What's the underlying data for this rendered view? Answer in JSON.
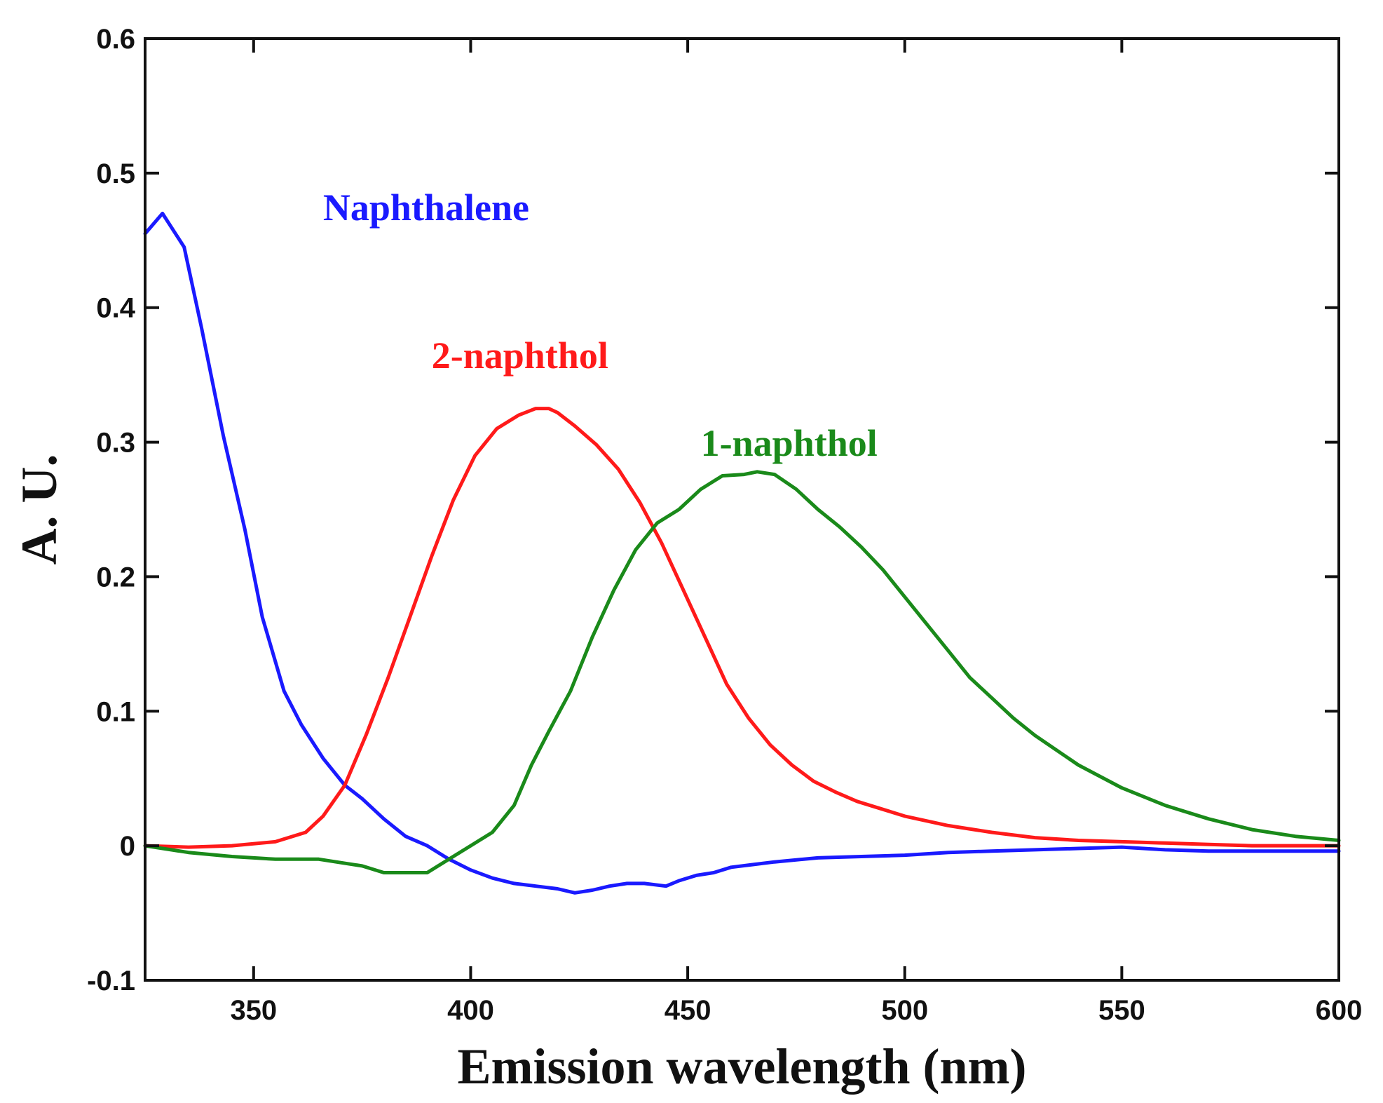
{
  "chart_data": {
    "type": "line",
    "title": "",
    "xlabel": "Emission wavelength (nm)",
    "ylabel": "A. U.",
    "xlim": [
      325,
      600
    ],
    "ylim": [
      -0.1,
      0.6
    ],
    "xticks": [
      350,
      400,
      450,
      500,
      550,
      600
    ],
    "yticks": [
      -0.1,
      0,
      0.1,
      0.2,
      0.3,
      0.4,
      0.5,
      0.6
    ],
    "xtick_labels": [
      "350",
      "400",
      "450",
      "500",
      "550",
      "600"
    ],
    "ytick_labels": [
      "-0.1",
      "0",
      "0.1",
      "0.2",
      "0.3",
      "0.4",
      "0.5",
      "0.6"
    ],
    "grid": false,
    "series": [
      {
        "name": "Naphthalene",
        "color": "#1a1aff",
        "x": [
          325,
          329,
          334,
          338,
          343,
          348,
          352,
          357,
          361,
          366,
          371,
          375,
          380,
          385,
          390,
          395,
          400,
          405,
          410,
          415,
          420,
          424,
          428,
          432,
          436,
          440,
          445,
          448,
          452,
          456,
          460,
          465,
          470,
          480,
          490,
          500,
          510,
          520,
          530,
          540,
          550,
          560,
          570,
          580,
          590,
          600
        ],
        "y": [
          0.455,
          0.47,
          0.445,
          0.385,
          0.305,
          0.235,
          0.17,
          0.115,
          0.09,
          0.065,
          0.045,
          0.035,
          0.02,
          0.007,
          0.0,
          -0.01,
          -0.018,
          -0.024,
          -0.028,
          -0.03,
          -0.032,
          -0.035,
          -0.033,
          -0.03,
          -0.028,
          -0.028,
          -0.03,
          -0.026,
          -0.022,
          -0.02,
          -0.016,
          -0.014,
          -0.012,
          -0.009,
          -0.008,
          -0.007,
          -0.005,
          -0.004,
          -0.003,
          -0.002,
          -0.001,
          -0.003,
          -0.004,
          -0.004,
          -0.004,
          -0.004
        ]
      },
      {
        "name": "2-naphthol",
        "color": "#ff1a1a",
        "x": [
          325,
          335,
          345,
          355,
          362,
          366,
          371,
          376,
          381,
          386,
          391,
          396,
          401,
          406,
          411,
          415,
          418,
          420,
          424,
          429,
          434,
          439,
          444,
          449,
          454,
          459,
          464,
          469,
          474,
          479,
          484,
          489,
          495,
          500,
          510,
          520,
          530,
          540,
          550,
          560,
          570,
          580,
          590,
          600
        ],
        "y": [
          0.0,
          -0.001,
          0.0,
          0.003,
          0.01,
          0.022,
          0.045,
          0.083,
          0.125,
          0.17,
          0.215,
          0.257,
          0.29,
          0.31,
          0.32,
          0.325,
          0.325,
          0.322,
          0.312,
          0.298,
          0.28,
          0.255,
          0.225,
          0.19,
          0.155,
          0.12,
          0.095,
          0.075,
          0.06,
          0.048,
          0.04,
          0.033,
          0.027,
          0.022,
          0.015,
          0.01,
          0.006,
          0.004,
          0.003,
          0.002,
          0.001,
          0.0,
          0.0,
          0.0
        ]
      },
      {
        "name": "1-naphthol",
        "color": "#1a8a1a",
        "x": [
          325,
          335,
          345,
          355,
          365,
          375,
          380,
          385,
          390,
          395,
          400,
          405,
          410,
          414,
          418,
          423,
          428,
          433,
          438,
          443,
          448,
          453,
          458,
          463,
          466,
          470,
          475,
          480,
          485,
          490,
          495,
          500,
          505,
          510,
          515,
          520,
          525,
          530,
          535,
          540,
          550,
          560,
          570,
          580,
          590,
          600
        ],
        "y": [
          0.0,
          -0.005,
          -0.008,
          -0.01,
          -0.01,
          -0.015,
          -0.02,
          -0.02,
          -0.02,
          -0.01,
          0.0,
          0.01,
          0.03,
          0.06,
          0.085,
          0.115,
          0.155,
          0.19,
          0.22,
          0.24,
          0.25,
          0.265,
          0.275,
          0.276,
          0.278,
          0.276,
          0.265,
          0.25,
          0.237,
          0.222,
          0.205,
          0.185,
          0.165,
          0.145,
          0.125,
          0.11,
          0.095,
          0.082,
          0.071,
          0.06,
          0.043,
          0.03,
          0.02,
          0.012,
          0.007,
          0.004
        ]
      }
    ],
    "annotations": [
      {
        "text": "Naphthalene",
        "series": "Naphthalene",
        "x": 366,
        "y": 0.465
      },
      {
        "text": "2-naphthol",
        "series": "2-naphthol",
        "x": 391,
        "y": 0.355
      },
      {
        "text": "1-naphthol",
        "series": "1-naphthol",
        "x": 453,
        "y": 0.29
      }
    ]
  }
}
